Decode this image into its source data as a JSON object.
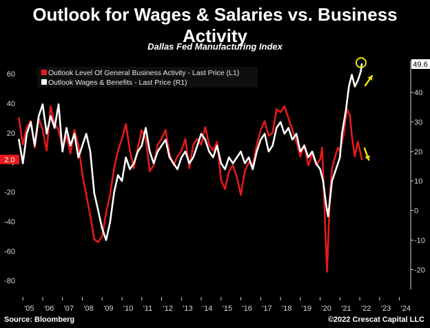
{
  "header": {
    "title": "Outlook for Wages & Salaries vs. Business Activity",
    "subtitle": "Dallas Fed Manufacturing Index"
  },
  "footer": {
    "source": "Source: Bloomberg",
    "credit": "©2022 Crescat Capital LLC"
  },
  "colors": {
    "background": "#000000",
    "business_activity": "#e41a1c",
    "wages_benefits": "#ffffff",
    "annotation": "#f2e600",
    "last_label_left_bg": "#e41a1c",
    "last_label_right_bg": "#ffffff"
  },
  "chart_data": {
    "type": "line",
    "title": "Outlook for Wages & Salaries vs. Business Activity",
    "subtitle": "Dallas Fed Manufacturing Index",
    "x_ticks": [
      "'05",
      "'06",
      "'07",
      "'08",
      "'09",
      "'10",
      "'11",
      "'12",
      "'13",
      "'14",
      "'15",
      "'16",
      "'17",
      "'18",
      "'19",
      "'20",
      "'21",
      "'22",
      "'23",
      "'24"
    ],
    "xlim": [
      2004.75,
      2024.5
    ],
    "y_left": {
      "ticks": [
        "60",
        "40",
        "20",
        "0",
        "-20",
        "-40",
        "-60",
        "-80"
      ],
      "ylim": [
        -86,
        68
      ]
    },
    "y_right": {
      "ticks": [
        "40",
        "30",
        "20",
        "10",
        "0",
        "-10",
        "-20"
      ],
      "ylim": [
        -26.7,
        50.3
      ]
    },
    "grid": false,
    "legend_position": "top-left",
    "series": [
      {
        "name": "Outlook Level Of General Business Activity - Last Price (L1)",
        "axis": "left",
        "last_value": "2.0",
        "points": [
          [
            2004.8,
            30
          ],
          [
            2005.0,
            12
          ],
          [
            2005.2,
            24
          ],
          [
            2005.4,
            28
          ],
          [
            2005.6,
            10
          ],
          [
            2005.8,
            30
          ],
          [
            2006.0,
            22
          ],
          [
            2006.2,
            8
          ],
          [
            2006.4,
            38
          ],
          [
            2006.6,
            26
          ],
          [
            2006.8,
            22
          ],
          [
            2007.0,
            10
          ],
          [
            2007.2,
            18
          ],
          [
            2007.4,
            6
          ],
          [
            2007.6,
            22
          ],
          [
            2007.8,
            12
          ],
          [
            2008.0,
            -8
          ],
          [
            2008.2,
            -22
          ],
          [
            2008.4,
            -36
          ],
          [
            2008.6,
            -52
          ],
          [
            2008.8,
            -54
          ],
          [
            2009.0,
            -50
          ],
          [
            2009.2,
            -34
          ],
          [
            2009.4,
            -22
          ],
          [
            2009.6,
            -4
          ],
          [
            2009.8,
            8
          ],
          [
            2010.0,
            16
          ],
          [
            2010.2,
            26
          ],
          [
            2010.4,
            8
          ],
          [
            2010.6,
            -4
          ],
          [
            2010.8,
            10
          ],
          [
            2011.0,
            22
          ],
          [
            2011.2,
            16
          ],
          [
            2011.4,
            -6
          ],
          [
            2011.6,
            -2
          ],
          [
            2011.8,
            12
          ],
          [
            2012.0,
            16
          ],
          [
            2012.2,
            22
          ],
          [
            2012.4,
            6
          ],
          [
            2012.6,
            -2
          ],
          [
            2012.8,
            4
          ],
          [
            2013.0,
            8
          ],
          [
            2013.2,
            16
          ],
          [
            2013.4,
            -4
          ],
          [
            2013.6,
            12
          ],
          [
            2013.8,
            16
          ],
          [
            2014.0,
            12
          ],
          [
            2014.2,
            24
          ],
          [
            2014.4,
            12
          ],
          [
            2014.6,
            8
          ],
          [
            2014.8,
            14
          ],
          [
            2015.0,
            -12
          ],
          [
            2015.2,
            -18
          ],
          [
            2015.4,
            -6
          ],
          [
            2015.6,
            -2
          ],
          [
            2015.8,
            -10
          ],
          [
            2016.0,
            -22
          ],
          [
            2016.2,
            -6
          ],
          [
            2016.4,
            0
          ],
          [
            2016.6,
            -2
          ],
          [
            2016.8,
            12
          ],
          [
            2017.0,
            22
          ],
          [
            2017.2,
            28
          ],
          [
            2017.4,
            18
          ],
          [
            2017.6,
            20
          ],
          [
            2017.8,
            36
          ],
          [
            2018.0,
            34
          ],
          [
            2018.2,
            38
          ],
          [
            2018.4,
            30
          ],
          [
            2018.6,
            22
          ],
          [
            2018.8,
            14
          ],
          [
            2019.0,
            4
          ],
          [
            2019.2,
            12
          ],
          [
            2019.4,
            -2
          ],
          [
            2019.6,
            6
          ],
          [
            2019.8,
            -2
          ],
          [
            2020.0,
            2
          ],
          [
            2020.1,
            10
          ],
          [
            2020.25,
            -42
          ],
          [
            2020.35,
            -74
          ],
          [
            2020.5,
            -20
          ],
          [
            2020.6,
            -4
          ],
          [
            2020.8,
            6
          ],
          [
            2020.9,
            10
          ],
          [
            2021.0,
            8
          ],
          [
            2021.2,
            20
          ],
          [
            2021.35,
            36
          ],
          [
            2021.5,
            32
          ],
          [
            2021.6,
            18
          ],
          [
            2021.75,
            4
          ],
          [
            2021.9,
            14
          ],
          [
            2022.05,
            6
          ],
          [
            2022.1,
            2
          ]
        ]
      },
      {
        "name": "Outlook Wages & Benefits - Last Price (R1)",
        "axis": "right",
        "last_value": "49.6",
        "points": [
          [
            2004.8,
            24
          ],
          [
            2005.0,
            16
          ],
          [
            2005.2,
            26
          ],
          [
            2005.4,
            30
          ],
          [
            2005.6,
            22
          ],
          [
            2005.8,
            32
          ],
          [
            2006.0,
            36
          ],
          [
            2006.2,
            26
          ],
          [
            2006.4,
            32
          ],
          [
            2006.6,
            28
          ],
          [
            2006.8,
            36
          ],
          [
            2007.0,
            20
          ],
          [
            2007.2,
            28
          ],
          [
            2007.4,
            22
          ],
          [
            2007.6,
            26
          ],
          [
            2007.8,
            18
          ],
          [
            2008.0,
            22
          ],
          [
            2008.2,
            26
          ],
          [
            2008.4,
            20
          ],
          [
            2008.6,
            6
          ],
          [
            2008.8,
            0
          ],
          [
            2009.0,
            -6
          ],
          [
            2009.2,
            -10
          ],
          [
            2009.4,
            -4
          ],
          [
            2009.6,
            6
          ],
          [
            2009.8,
            12
          ],
          [
            2010.0,
            10
          ],
          [
            2010.2,
            18
          ],
          [
            2010.4,
            14
          ],
          [
            2010.6,
            16
          ],
          [
            2010.8,
            20
          ],
          [
            2011.0,
            22
          ],
          [
            2011.2,
            28
          ],
          [
            2011.4,
            20
          ],
          [
            2011.6,
            16
          ],
          [
            2011.8,
            20
          ],
          [
            2012.0,
            22
          ],
          [
            2012.2,
            24
          ],
          [
            2012.4,
            18
          ],
          [
            2012.6,
            16
          ],
          [
            2012.8,
            14
          ],
          [
            2013.0,
            18
          ],
          [
            2013.2,
            20
          ],
          [
            2013.4,
            16
          ],
          [
            2013.6,
            18
          ],
          [
            2013.8,
            22
          ],
          [
            2014.0,
            26
          ],
          [
            2014.2,
            24
          ],
          [
            2014.4,
            20
          ],
          [
            2014.6,
            18
          ],
          [
            2014.8,
            22
          ],
          [
            2015.0,
            16
          ],
          [
            2015.2,
            14
          ],
          [
            2015.4,
            18
          ],
          [
            2015.6,
            16
          ],
          [
            2015.8,
            18
          ],
          [
            2016.0,
            20
          ],
          [
            2016.2,
            16
          ],
          [
            2016.4,
            18
          ],
          [
            2016.6,
            14
          ],
          [
            2016.8,
            20
          ],
          [
            2017.0,
            24
          ],
          [
            2017.2,
            26
          ],
          [
            2017.4,
            20
          ],
          [
            2017.6,
            22
          ],
          [
            2017.8,
            28
          ],
          [
            2018.0,
            30
          ],
          [
            2018.2,
            26
          ],
          [
            2018.4,
            28
          ],
          [
            2018.6,
            24
          ],
          [
            2018.8,
            26
          ],
          [
            2019.0,
            20
          ],
          [
            2019.2,
            22
          ],
          [
            2019.4,
            18
          ],
          [
            2019.6,
            20
          ],
          [
            2019.8,
            16
          ],
          [
            2020.0,
            14
          ],
          [
            2020.15,
            10
          ],
          [
            2020.3,
            2
          ],
          [
            2020.4,
            -2
          ],
          [
            2020.5,
            4
          ],
          [
            2020.6,
            10
          ],
          [
            2020.8,
            14
          ],
          [
            2020.9,
            16
          ],
          [
            2021.0,
            18
          ],
          [
            2021.1,
            26
          ],
          [
            2021.3,
            34
          ],
          [
            2021.45,
            42
          ],
          [
            2021.6,
            46
          ],
          [
            2021.75,
            42
          ],
          [
            2021.9,
            44
          ],
          [
            2022.05,
            47
          ],
          [
            2022.1,
            49.6
          ]
        ]
      }
    ],
    "annotations": [
      {
        "type": "circle",
        "x": 2022.1,
        "axis": "right",
        "y": 49.6
      },
      {
        "type": "arrow-up",
        "series": "Outlook Wages & Benefits - Last Price (R1)"
      },
      {
        "type": "arrow-down",
        "series": "Outlook Level Of General Business Activity - Last Price (L1)"
      }
    ]
  }
}
